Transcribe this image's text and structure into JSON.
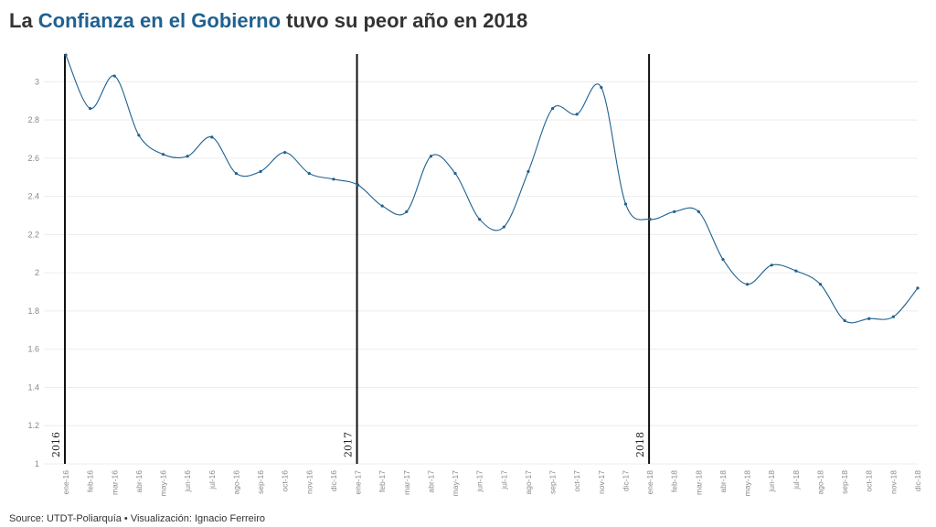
{
  "title": {
    "prefix": "La ",
    "highlight": "Confianza en el Gobierno",
    "suffix": " tuvo su peor año en 2018"
  },
  "source": "Source: UTDT-Poliarquía • Visualización: Ignacio Ferreiro",
  "colors": {
    "line": "#1f6190",
    "highlight": "#1f6190",
    "marker": "#111111",
    "grid": "#ececec"
  },
  "chart_data": {
    "type": "line",
    "title": "La Confianza en el Gobierno tuvo su peor año en 2018",
    "xlabel": "",
    "ylabel": "",
    "ylim": [
      1,
      3.15
    ],
    "yticks": [
      1,
      1.2,
      1.4,
      1.6,
      1.8,
      2,
      2.2,
      2.4,
      2.6,
      2.8,
      3
    ],
    "ytick_labels": [
      "1",
      "1.2",
      "1.4",
      "1.6",
      "1.8",
      "2",
      "2.2",
      "2.4",
      "2.6",
      "2.8",
      "3"
    ],
    "grid": true,
    "categories": [
      "ene-16",
      "feb-16",
      "mar-16",
      "abr-16",
      "may-16",
      "jun-16",
      "jul-16",
      "ago-16",
      "sep-16",
      "oct-16",
      "nov-16",
      "dic-16",
      "ene-17",
      "feb-17",
      "mar-17",
      "abr-17",
      "may-17",
      "jun-17",
      "jul-17",
      "ago-17",
      "sep-17",
      "oct-17",
      "nov-17",
      "dic-17",
      "ene-18",
      "feb-18",
      "mar-18",
      "abr-18",
      "may-18",
      "jun-18",
      "jul-18",
      "ago-18",
      "sep-18",
      "oct-18",
      "nov-18",
      "dic-18"
    ],
    "values": [
      3.14,
      2.86,
      3.03,
      2.72,
      2.62,
      2.61,
      2.71,
      2.52,
      2.53,
      2.63,
      2.52,
      2.49,
      2.46,
      2.35,
      2.32,
      2.61,
      2.52,
      2.28,
      2.24,
      2.53,
      2.86,
      2.83,
      2.97,
      2.36,
      2.28,
      2.32,
      2.32,
      2.07,
      1.94,
      2.04,
      2.01,
      1.94,
      1.75,
      1.76,
      1.77,
      1.92
    ],
    "annotations": [
      {
        "label": "2016",
        "category": "ene-16"
      },
      {
        "label": "2017",
        "category": "ene-17"
      },
      {
        "label": "2018",
        "category": "ene-18"
      }
    ]
  }
}
